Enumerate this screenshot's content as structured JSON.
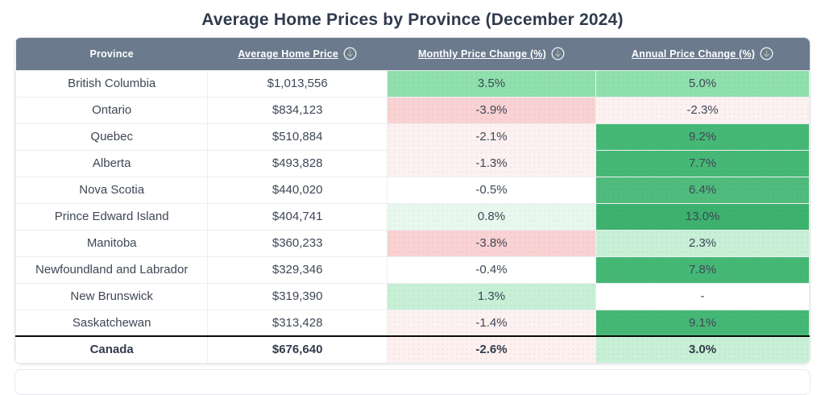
{
  "title": "Average Home Prices by Province (December 2024)",
  "colors": {
    "header_bg": "#6b7a8d",
    "header_text": "#ffffff",
    "title_text": "#2f3b4e",
    "cell_text": "#3e4756",
    "summary_divider": "#0b0b0b",
    "green_strong": "#46b876",
    "green_strongest": "#3db26f",
    "green_medium_dark": "#4fbc7d",
    "green_medium": "#8fe0ad",
    "green_light": "#c7f0d6",
    "green_faint": "#e9f8ef",
    "red_medium": "#fad2d3",
    "red_faint": "#fdf1f1",
    "neutral": "#ffffff"
  },
  "chart_data": {
    "type": "table",
    "title": "Average Home Prices by Province (December 2024)",
    "columns": [
      {
        "label": "Province",
        "sortable": false
      },
      {
        "label": "Average Home Price",
        "sortable": true,
        "icon": "sort-down-circle-icon"
      },
      {
        "label": "Monthly Price Change (%)",
        "sortable": true,
        "icon": "sort-down-circle-icon"
      },
      {
        "label": "Annual Price Change (%)",
        "sortable": true,
        "icon": "sort-down-circle-icon"
      }
    ],
    "rows": [
      {
        "province": "British Columbia",
        "price": "$1,013,556",
        "monthly": "3.5%",
        "monthly_bg": "#8fe0ad",
        "annual": "5.0%",
        "annual_bg": "#8fe0ad"
      },
      {
        "province": "Ontario",
        "price": "$834,123",
        "monthly": "-3.9%",
        "monthly_bg": "#fad2d3",
        "annual": "-2.3%",
        "annual_bg": "#fdf1f1"
      },
      {
        "province": "Quebec",
        "price": "$510,884",
        "monthly": "-2.1%",
        "monthly_bg": "#fdf1f1",
        "annual": "9.2%",
        "annual_bg": "#46b876"
      },
      {
        "province": "Alberta",
        "price": "$493,828",
        "monthly": "-1.3%",
        "monthly_bg": "#fdf1f1",
        "annual": "7.7%",
        "annual_bg": "#46b876"
      },
      {
        "province": "Nova Scotia",
        "price": "$440,020",
        "monthly": "-0.5%",
        "monthly_bg": "#ffffff",
        "annual": "6.4%",
        "annual_bg": "#4fbc7d"
      },
      {
        "province": "Prince Edward Island",
        "price": "$404,741",
        "monthly": "0.8%",
        "monthly_bg": "#e9f8ef",
        "annual": "13.0%",
        "annual_bg": "#3db26f"
      },
      {
        "province": "Manitoba",
        "price": "$360,233",
        "monthly": "-3.8%",
        "monthly_bg": "#fad2d3",
        "annual": "2.3%",
        "annual_bg": "#c7f0d6"
      },
      {
        "province": "Newfoundland and Labrador",
        "price": "$329,346",
        "monthly": "-0.4%",
        "monthly_bg": "#ffffff",
        "annual": "7.8%",
        "annual_bg": "#46b876"
      },
      {
        "province": "New Brunswick",
        "price": "$319,390",
        "monthly": "1.3%",
        "monthly_bg": "#c7f0d6",
        "annual": "-",
        "annual_bg": "#ffffff"
      },
      {
        "province": "Saskatchewan",
        "price": "$313,428",
        "monthly": "-1.4%",
        "monthly_bg": "#fdf1f1",
        "annual": "9.1%",
        "annual_bg": "#46b876"
      }
    ],
    "summary_row": {
      "province": "Canada",
      "price": "$676,640",
      "monthly": "-2.6%",
      "monthly_bg": "#fdf0ef",
      "annual": "3.0%",
      "annual_bg": "#c7f0d6"
    }
  }
}
